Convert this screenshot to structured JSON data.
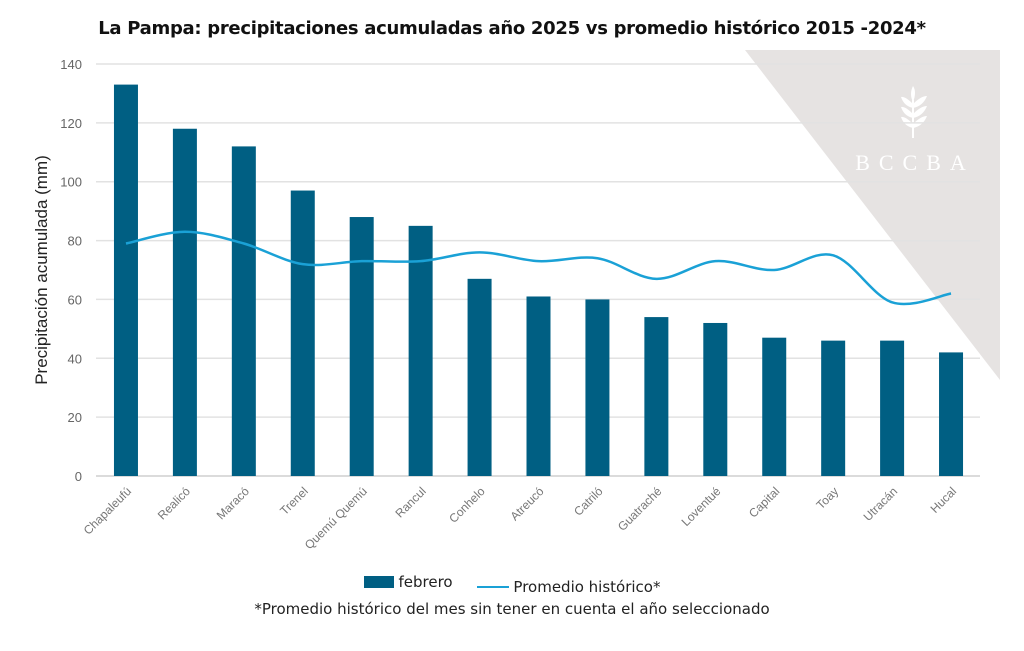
{
  "chart_data": {
    "type": "bar",
    "title": "La Pampa: precipitaciones acumuladas año 2025 vs promedio histórico 2015 -2024*",
    "xlabel": "",
    "ylabel": "Precipitación acumulada (mm)",
    "ylim": [
      0,
      140
    ],
    "yticks": [
      0,
      20,
      40,
      60,
      80,
      100,
      120,
      140
    ],
    "grid": true,
    "legend_position": "bottom",
    "categories": [
      "Chapaleufú",
      "Realicó",
      "Maracó",
      "Trenel",
      "Quemú Quemú",
      "Rancul",
      "Conhelo",
      "Atreucó",
      "Catriló",
      "Guatraché",
      "Loventué",
      "Capital",
      "Toay",
      "Utracán",
      "Hucal"
    ],
    "series": [
      {
        "name": "febrero",
        "type": "bar",
        "color": "#005f83",
        "values": [
          133,
          118,
          112,
          97,
          88,
          85,
          67,
          61,
          60,
          54,
          52,
          47,
          46,
          46,
          42
        ]
      },
      {
        "name": "Promedio histórico*",
        "type": "line",
        "color": "#1aa1d6",
        "values": [
          79,
          83,
          79,
          72,
          73,
          73,
          76,
          73,
          74,
          67,
          73,
          70,
          75,
          59,
          62
        ]
      }
    ],
    "footnote": "*Promedio histórico del mes sin tener en cuenta el año seleccionado",
    "watermark": "BCCBA"
  }
}
